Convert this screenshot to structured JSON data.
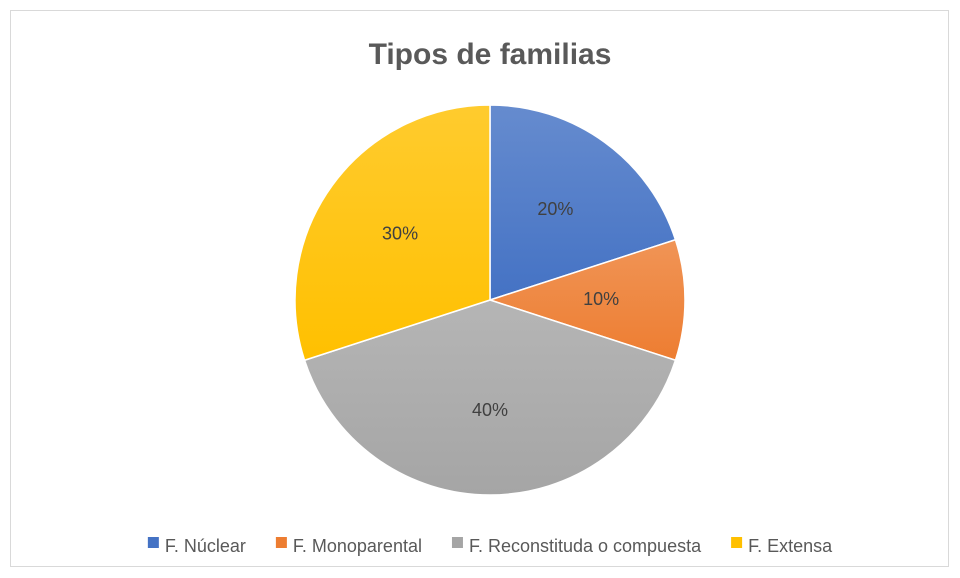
{
  "chart_data": {
    "type": "pie",
    "title": "Tipos de familias",
    "categories": [
      "F. Núclear",
      "F. Monoparental",
      "F. Reconstituda o compuesta",
      "F. Extensa"
    ],
    "values": [
      20,
      10,
      40,
      30
    ],
    "value_labels": [
      "20%",
      "10%",
      "40%",
      "30%"
    ],
    "colors": [
      "#4472c4",
      "#ed7d31",
      "#a5a5a5",
      "#ffc000"
    ],
    "legend": "bottom"
  }
}
